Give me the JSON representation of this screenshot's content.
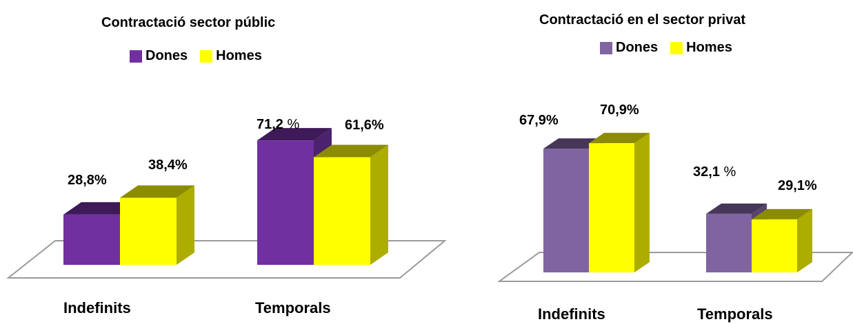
{
  "colors": {
    "homes": "#FFFF00"
  },
  "chart_data": [
    {
      "type": "bar",
      "title": "Contractació sector públic",
      "categories": [
        "Indefinits",
        "Temporals"
      ],
      "series": [
        {
          "name": "Dones",
          "color": "#7030A0",
          "values": [
            28.8,
            71.2
          ],
          "labels": [
            "28,8%",
            "71,2 %"
          ]
        },
        {
          "name": "Homes",
          "color": "#FFFF00",
          "values": [
            38.4,
            61.6
          ],
          "labels": [
            "38,4%",
            "61,6%"
          ]
        }
      ],
      "ylim": [
        0,
        80
      ],
      "legend": "top"
    },
    {
      "type": "bar",
      "title": "Contractació en el sector privat",
      "categories": [
        "Indefinits",
        "Temporals"
      ],
      "series": [
        {
          "name": "Dones",
          "color": "#8064A2",
          "values": [
            67.9,
            32.1
          ],
          "labels": [
            "67,9%",
            "32,1 %"
          ]
        },
        {
          "name": "Homes",
          "color": "#FFFF00",
          "values": [
            70.9,
            29.1
          ],
          "labels": [
            "70,9%",
            "29,1%"
          ]
        }
      ],
      "ylim": [
        0,
        80
      ],
      "legend": "top"
    }
  ]
}
